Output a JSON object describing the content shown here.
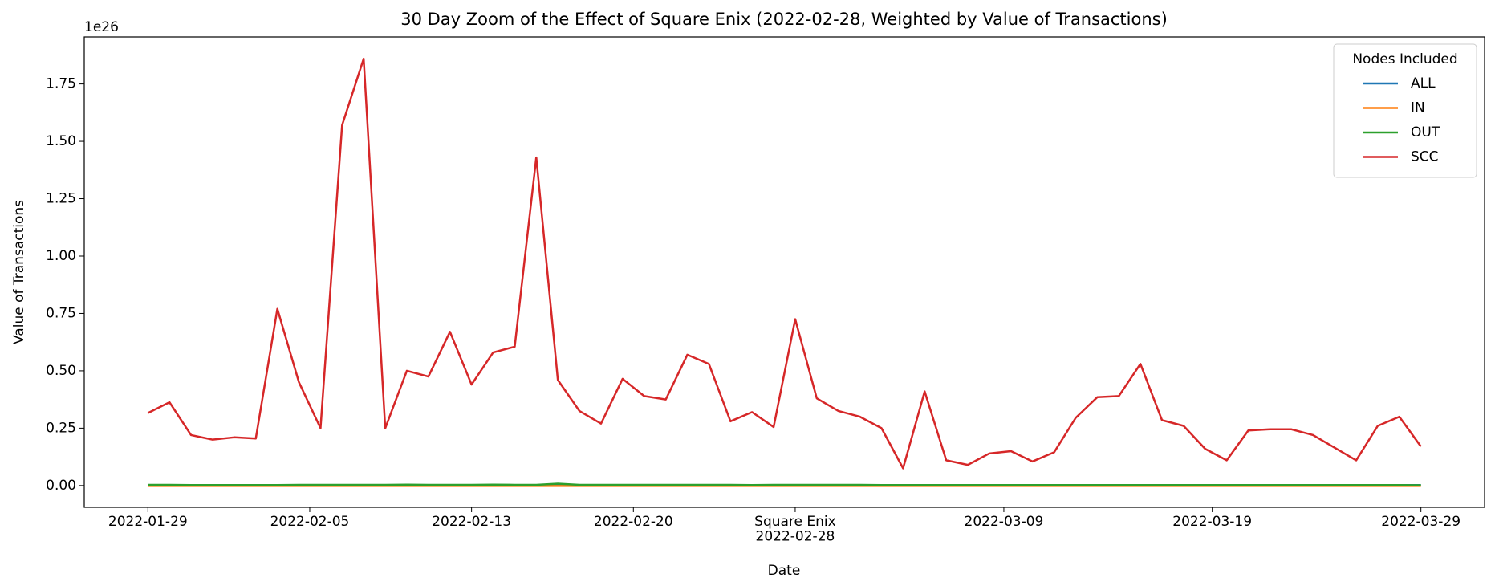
{
  "chart_data": {
    "type": "line",
    "title": "30 Day Zoom of the Effect of Square Enix (2022-02-28, Weighted by Value of Transactions)",
    "x_label": "Date",
    "y_label": "Value of Transactions",
    "y_offset_label": "1e26",
    "categories": [
      "2022-01-29",
      "2022-01-30",
      "2022-01-31",
      "2022-02-01",
      "2022-02-02",
      "2022-02-03",
      "2022-02-04",
      "2022-02-05",
      "2022-02-06",
      "2022-02-07",
      "2022-02-08",
      "2022-02-09",
      "2022-02-10",
      "2022-02-11",
      "2022-02-12",
      "2022-02-13",
      "2022-02-14",
      "2022-02-15",
      "2022-02-16",
      "2022-02-17",
      "2022-02-18",
      "2022-02-19",
      "2022-02-20",
      "2022-02-21",
      "2022-02-22",
      "2022-02-23",
      "2022-02-24",
      "2022-02-25",
      "2022-02-26",
      "2022-02-27",
      "2022-02-28",
      "2022-03-01",
      "2022-03-02",
      "2022-03-03",
      "2022-03-04",
      "2022-03-05",
      "2022-03-06",
      "2022-03-07",
      "2022-03-08",
      "2022-03-09",
      "2022-03-10",
      "2022-03-11",
      "2022-03-12",
      "2022-03-13",
      "2022-03-14",
      "2022-03-15",
      "2022-03-16",
      "2022-03-17",
      "2022-03-18",
      "2022-03-19",
      "2022-03-20",
      "2022-03-21",
      "2022-03-22",
      "2022-03-23",
      "2022-03-24",
      "2022-03-25",
      "2022-03-26",
      "2022-03-27",
      "2022-03-28",
      "2022-03-29"
    ],
    "xlim": [
      -2.95,
      61.95
    ],
    "xticks": [
      {
        "value": 0,
        "label": "2022-01-29"
      },
      {
        "value": 7.5,
        "label": "2022-02-05"
      },
      {
        "value": 15,
        "label": "2022-02-13"
      },
      {
        "value": 22.5,
        "label": "2022-02-20"
      },
      {
        "value": 30,
        "label": "Square Enix\n2022-02-28"
      },
      {
        "value": 39.67,
        "label": "2022-03-09"
      },
      {
        "value": 49.33,
        "label": "2022-03-19"
      },
      {
        "value": 59,
        "label": "2022-03-29"
      }
    ],
    "ylim": [
      -0.095,
      1.955
    ],
    "yticks": [
      {
        "value": 0,
        "label": "0.00"
      },
      0.25,
      {
        "value": 0.5,
        "label": "0.50"
      },
      0.75,
      {
        "value": 1,
        "label": "1.00"
      },
      1.25,
      {
        "value": 1.5,
        "label": "1.50"
      },
      1.75
    ],
    "legend_title": "Nodes Included",
    "legend": "upper right",
    "series": [
      {
        "name": "ALL",
        "color": "#1f77b4",
        "values": [
          0.002,
          0.002,
          0.002,
          0.002,
          0.002,
          0.002,
          0.002,
          0.002,
          0.002,
          0.002,
          0.002,
          0.002,
          0.002,
          0.002,
          0.002,
          0.002,
          0.002,
          0.002,
          0.002,
          0.003,
          0.002,
          0.002,
          0.002,
          0.002,
          0.002,
          0.002,
          0.002,
          0.002,
          0.002,
          0.002,
          0.002,
          0.002,
          0.002,
          0.002,
          0.002,
          0.002,
          0.002,
          0.002,
          0.002,
          0.002,
          0.002,
          0.002,
          0.002,
          0.002,
          0.002,
          0.002,
          0.002,
          0.002,
          0.002,
          0.002,
          0.002,
          0.002,
          0.002,
          0.002,
          0.002,
          0.002,
          0.002,
          0.002,
          0.002,
          0.002
        ]
      },
      {
        "name": "IN",
        "color": "#ff7f0e",
        "values": [
          -0.002,
          -0.002,
          -0.002,
          -0.002,
          -0.002,
          -0.002,
          -0.002,
          -0.002,
          -0.002,
          -0.002,
          -0.002,
          -0.002,
          -0.002,
          -0.002,
          -0.002,
          -0.002,
          -0.002,
          -0.002,
          -0.002,
          -0.002,
          -0.002,
          -0.002,
          -0.002,
          -0.002,
          -0.002,
          -0.002,
          -0.002,
          -0.002,
          -0.002,
          -0.002,
          -0.002,
          -0.002,
          -0.002,
          -0.002,
          -0.002,
          -0.002,
          -0.002,
          -0.002,
          -0.002,
          -0.002,
          -0.002,
          -0.002,
          -0.002,
          -0.002,
          -0.002,
          -0.002,
          -0.002,
          -0.002,
          -0.002,
          -0.002,
          -0.002,
          -0.002,
          -0.002,
          -0.002,
          -0.002,
          -0.002,
          -0.002,
          -0.002,
          -0.002,
          -0.002
        ]
      },
      {
        "name": "OUT",
        "color": "#2ca02c",
        "values": [
          0.003,
          0.003,
          0.002,
          0.002,
          0.002,
          0.002,
          0.002,
          0.003,
          0.003,
          0.003,
          0.003,
          0.003,
          0.004,
          0.003,
          0.003,
          0.003,
          0.004,
          0.003,
          0.003,
          0.008,
          0.003,
          0.003,
          0.003,
          0.003,
          0.003,
          0.003,
          0.003,
          0.003,
          0.002,
          0.003,
          0.003,
          0.003,
          0.003,
          0.003,
          0.002,
          0.002,
          0.002,
          0.002,
          0.002,
          0.002,
          0.002,
          0.002,
          0.002,
          0.002,
          0.002,
          0.002,
          0.002,
          0.002,
          0.002,
          0.002,
          0.002,
          0.002,
          0.002,
          0.002,
          0.002,
          0.002,
          0.002,
          0.002,
          0.002,
          0.001
        ]
      },
      {
        "name": "SCC",
        "color": "#d62728",
        "values": [
          0.316,
          0.363,
          0.22,
          0.2,
          0.21,
          0.205,
          0.77,
          0.45,
          0.25,
          1.57,
          1.86,
          0.25,
          0.5,
          0.475,
          0.67,
          0.44,
          0.58,
          0.605,
          1.43,
          0.46,
          0.325,
          0.27,
          0.465,
          0.39,
          0.375,
          0.57,
          0.53,
          0.28,
          0.32,
          0.255,
          0.725,
          0.38,
          0.325,
          0.3,
          0.25,
          0.075,
          0.41,
          0.11,
          0.09,
          0.14,
          0.15,
          0.105,
          0.145,
          0.295,
          0.385,
          0.39,
          0.53,
          0.285,
          0.26,
          0.16,
          0.11,
          0.24,
          0.245,
          0.245,
          0.22,
          0.165,
          0.11,
          0.26,
          0.3,
          0.17
        ]
      }
    ]
  }
}
